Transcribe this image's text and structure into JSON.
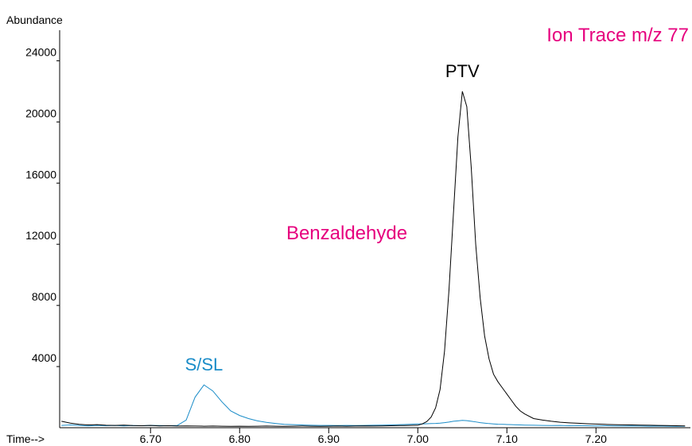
{
  "chart_data": {
    "type": "line",
    "annotations": [
      "Ion Trace m/z 77",
      "Benzaldehyde"
    ],
    "y_label": "Abundance",
    "x_label": "Time-->",
    "xlim": [
      6.598,
      7.306
    ],
    "ylim": [
      0,
      26000
    ],
    "xticks": [
      {
        "value": 6.7,
        "label": "6.70"
      },
      {
        "value": 6.8,
        "label": "6.80"
      },
      {
        "value": 6.9,
        "label": "6.90"
      },
      {
        "value": 7.0,
        "label": "7.00"
      },
      {
        "value": 7.1,
        "label": "7.10"
      },
      {
        "value": 7.2,
        "label": "7.20"
      }
    ],
    "yticks": [
      4000,
      8000,
      12000,
      16000,
      20000,
      24000
    ],
    "x": [
      6.6,
      6.61,
      6.62,
      6.63,
      6.64,
      6.65,
      6.66,
      6.67,
      6.68,
      6.69,
      6.7,
      6.71,
      6.72,
      6.73,
      6.74,
      6.75,
      6.76,
      6.77,
      6.78,
      6.79,
      6.8,
      6.81,
      6.82,
      6.83,
      6.84,
      6.85,
      6.86,
      6.87,
      6.88,
      6.89,
      6.9,
      6.91,
      6.92,
      6.93,
      6.94,
      6.95,
      6.96,
      6.97,
      6.98,
      6.99,
      7.0,
      7.005,
      7.01,
      7.015,
      7.02,
      7.025,
      7.03,
      7.035,
      7.04,
      7.045,
      7.05,
      7.055,
      7.06,
      7.065,
      7.07,
      7.075,
      7.08,
      7.085,
      7.09,
      7.095,
      7.1,
      7.105,
      7.11,
      7.115,
      7.12,
      7.13,
      7.14,
      7.15,
      7.16,
      7.17,
      7.18,
      7.19,
      7.2,
      7.21,
      7.22,
      7.23,
      7.24,
      7.25,
      7.26,
      7.27,
      7.28,
      7.29,
      7.3
    ],
    "series": [
      {
        "name": "S/SL",
        "color": "#1a8cc8",
        "values": [
          150,
          180,
          150,
          120,
          150,
          130,
          150,
          120,
          140,
          130,
          150,
          140,
          130,
          150,
          500,
          2000,
          2800,
          2400,
          1700,
          1100,
          800,
          600,
          450,
          350,
          280,
          220,
          200,
          180,
          160,
          150,
          150,
          140,
          150,
          140,
          150,
          160,
          170,
          180,
          200,
          220,
          250,
          250,
          260,
          270,
          280,
          300,
          330,
          370,
          420,
          450,
          480,
          460,
          420,
          380,
          330,
          300,
          270,
          250,
          230,
          220,
          210,
          200,
          190,
          180,
          170,
          160,
          150,
          140,
          150,
          130,
          140,
          130,
          120,
          130,
          120,
          110,
          120,
          110,
          100,
          110,
          100,
          90,
          100
        ]
      },
      {
        "name": "PTV",
        "color": "#000000",
        "values": [
          420,
          300,
          220,
          180,
          200,
          160,
          150,
          170,
          140,
          130,
          150,
          120,
          130,
          110,
          120,
          110,
          100,
          110,
          100,
          90,
          100,
          90,
          100,
          110,
          100,
          90,
          100,
          110,
          100,
          90,
          100,
          110,
          100,
          110,
          120,
          110,
          120,
          130,
          140,
          150,
          160,
          250,
          400,
          700,
          1300,
          2500,
          5000,
          9000,
          14000,
          19000,
          22000,
          21000,
          17000,
          12000,
          8500,
          6000,
          4500,
          3500,
          3000,
          2600,
          2200,
          1800,
          1400,
          1100,
          900,
          600,
          500,
          420,
          360,
          320,
          290,
          260,
          240,
          220,
          200,
          190,
          180,
          170,
          160,
          150,
          140,
          130,
          120
        ]
      }
    ]
  }
}
